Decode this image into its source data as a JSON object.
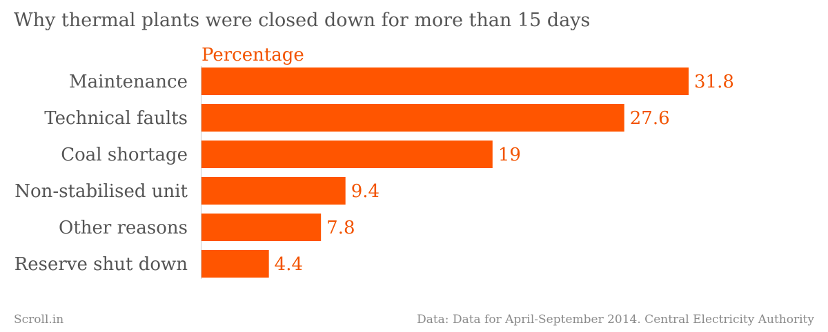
{
  "chart_data": {
    "type": "bar",
    "orientation": "horizontal",
    "title": "Why thermal plants were closed down for more than 15 days",
    "series_label": "Percentage",
    "categories": [
      "Maintenance",
      "Technical faults",
      "Coal shortage",
      "Non-stabilised unit",
      "Other reasons",
      "Reserve shut down"
    ],
    "values": [
      31.8,
      27.6,
      19,
      9.4,
      7.8,
      4.4
    ],
    "value_labels": [
      "31.8",
      "27.6",
      "19",
      "9.4",
      "7.8",
      "4.4"
    ],
    "xlim": [
      0,
      31.8
    ],
    "grid": false,
    "colors": {
      "bar": "#ff5500",
      "label": "#f25300",
      "category_text": "#555555",
      "axis": "#cccccc"
    }
  },
  "footer": {
    "brand": "Scroll.in",
    "source": "Data: Data for April-September 2014. Central Electricity Authority"
  }
}
